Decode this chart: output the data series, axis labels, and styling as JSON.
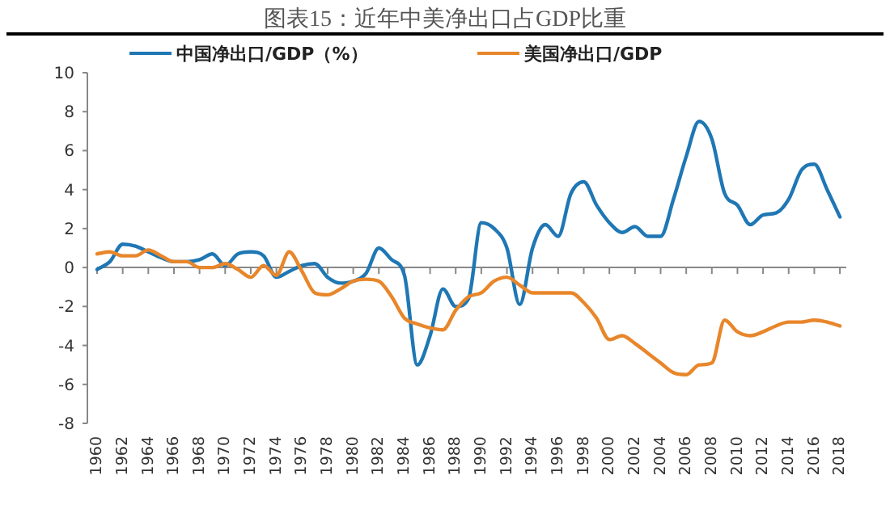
{
  "chart_data": {
    "type": "line",
    "title": "图表15：近年中美净出口占GDP比重",
    "x": [
      1960,
      1961,
      1962,
      1963,
      1964,
      1965,
      1966,
      1967,
      1968,
      1969,
      1970,
      1971,
      1972,
      1973,
      1974,
      1975,
      1976,
      1977,
      1978,
      1979,
      1980,
      1981,
      1982,
      1983,
      1984,
      1985,
      1986,
      1987,
      1988,
      1989,
      1990,
      1991,
      1992,
      1993,
      1994,
      1995,
      1996,
      1997,
      1998,
      1999,
      2000,
      2001,
      2002,
      2003,
      2004,
      2005,
      2006,
      2007,
      2008,
      2009,
      2010,
      2011,
      2012,
      2013,
      2014,
      2015,
      2016,
      2017,
      2018
    ],
    "series": [
      {
        "name": "中国净出口/GDP（%）",
        "color": "#1f77b4",
        "values": [
          -0.1,
          0.3,
          1.2,
          1.1,
          0.8,
          0.5,
          0.3,
          0.3,
          0.4,
          0.7,
          0.1,
          0.7,
          0.8,
          0.6,
          -0.5,
          -0.2,
          0.1,
          0.2,
          -0.5,
          -0.8,
          -0.7,
          -0.3,
          1.0,
          0.4,
          -0.4,
          -5.0,
          -3.5,
          -1.1,
          -2.0,
          -1.6,
          2.3,
          2.0,
          1.0,
          -1.9,
          1.0,
          2.2,
          1.6,
          3.8,
          4.4,
          3.2,
          2.3,
          1.8,
          2.1,
          1.6,
          1.6,
          3.5,
          5.7,
          7.5,
          6.6,
          3.8,
          3.2,
          2.2,
          2.7,
          2.8,
          3.5,
          5.0,
          5.3,
          4.0,
          2.6
        ]
      },
      {
        "name": "美国净出口/GDP",
        "color": "#e8862a",
        "values": [
          0.7,
          0.8,
          0.6,
          0.6,
          0.9,
          0.6,
          0.3,
          0.3,
          0.0,
          0.0,
          0.2,
          -0.1,
          -0.5,
          0.1,
          -0.4,
          0.8,
          -0.2,
          -1.3,
          -1.4,
          -1.1,
          -0.7,
          -0.6,
          -0.7,
          -1.5,
          -2.6,
          -2.9,
          -3.1,
          -3.2,
          -2.2,
          -1.5,
          -1.3,
          -0.7,
          -0.5,
          -0.9,
          -1.3,
          -1.3,
          -1.3,
          -1.3,
          -1.8,
          -2.6,
          -3.7,
          -3.5,
          -3.9,
          -4.4,
          -4.9,
          -5.4,
          -5.5,
          -5.0,
          -4.9,
          -2.7,
          -3.3,
          -3.5,
          -3.3,
          -3.0,
          -2.8,
          -2.8,
          -2.7,
          -2.8,
          -3.0
        ]
      }
    ],
    "xlim": [
      1960,
      2018.5
    ],
    "xticks": [
      1960,
      1962,
      1964,
      1966,
      1968,
      1970,
      1972,
      1974,
      1976,
      1978,
      1980,
      1982,
      1984,
      1986,
      1988,
      1990,
      1992,
      1994,
      1996,
      1998,
      2000,
      2002,
      2004,
      2006,
      2008,
      2010,
      2012,
      2014,
      2016,
      2018
    ],
    "ylim": [
      -8,
      10
    ],
    "yticks": [
      -8,
      -6,
      -4,
      -2,
      0,
      2,
      4,
      6,
      8,
      10
    ],
    "legend": "top",
    "marker": "none",
    "line_style": "solid"
  }
}
